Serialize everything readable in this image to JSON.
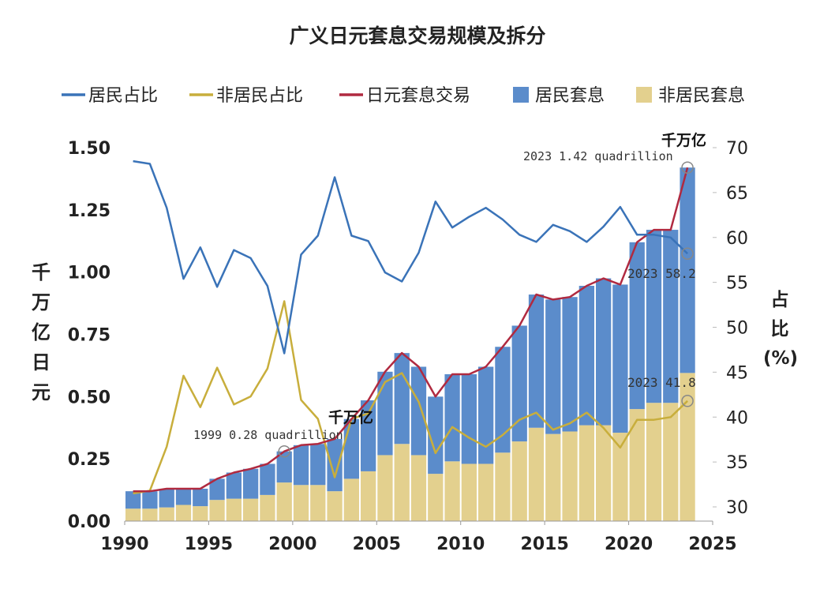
{
  "chart_data": {
    "type": "bar+line",
    "title": "广义日元套息交易规模及拆分",
    "ylabel_left": "千万亿日元",
    "ylabel_right": "占比(%)",
    "ylim_left": [
      0,
      1.5
    ],
    "ylim_right": [
      28.5,
      70
    ],
    "xlim": [
      1990,
      2025
    ],
    "x_ticks": [
      "1990",
      "1995",
      "2000",
      "2005",
      "2010",
      "2015",
      "2020",
      "2025"
    ],
    "y_ticks_left": [
      "0.00",
      "0.25",
      "0.50",
      "0.75",
      "1.00",
      "1.25",
      "1.50"
    ],
    "y_ticks_right": [
      "30",
      "35",
      "40",
      "45",
      "50",
      "55",
      "60",
      "65",
      "70"
    ],
    "legend_position": "top",
    "years": [
      1990,
      1991,
      1992,
      1993,
      1994,
      1995,
      1996,
      1997,
      1998,
      1999,
      2000,
      2001,
      2002,
      2003,
      2004,
      2005,
      2006,
      2007,
      2008,
      2009,
      2010,
      2011,
      2012,
      2013,
      2014,
      2015,
      2016,
      2017,
      2018,
      2019,
      2020,
      2021,
      2022,
      2023
    ],
    "series": [
      {
        "name": "居民占比",
        "type": "line",
        "axis": "right",
        "color": "#3a73b8",
        "values": [
          68.5,
          68.2,
          63.3,
          55.4,
          58.9,
          54.5,
          58.6,
          57.7,
          54.6,
          47.1,
          58.1,
          60.2,
          66.7,
          60.2,
          59.6,
          56.1,
          55.1,
          58.3,
          64.0,
          61.1,
          62.3,
          63.3,
          62.0,
          60.3,
          59.5,
          61.4,
          60.7,
          59.5,
          61.2,
          63.4,
          60.3,
          60.3,
          60.0,
          58.2
        ]
      },
      {
        "name": "非居民占比",
        "type": "line",
        "axis": "right",
        "color": "#c8ae3c",
        "values": [
          31.5,
          31.8,
          36.7,
          44.6,
          41.1,
          45.5,
          41.4,
          42.3,
          45.4,
          52.9,
          41.9,
          39.8,
          33.3,
          39.8,
          40.4,
          43.9,
          44.9,
          41.7,
          36.0,
          38.9,
          37.7,
          36.7,
          38.0,
          39.7,
          40.5,
          38.6,
          39.3,
          40.5,
          38.8,
          36.6,
          39.7,
          39.7,
          40.0,
          41.8
        ]
      },
      {
        "name": "日元套息交易",
        "type": "line",
        "axis": "left",
        "color": "#b02a40",
        "values": [
          0.12,
          0.12,
          0.13,
          0.13,
          0.13,
          0.17,
          0.195,
          0.21,
          0.23,
          0.28,
          0.305,
          0.31,
          0.33,
          0.41,
          0.485,
          0.6,
          0.675,
          0.62,
          0.5,
          0.59,
          0.59,
          0.62,
          0.7,
          0.785,
          0.91,
          0.89,
          0.9,
          0.945,
          0.975,
          0.95,
          1.12,
          1.17,
          1.17,
          1.42
        ]
      },
      {
        "name": "居民套息",
        "type": "bar",
        "axis": "left",
        "color": "#5b8ccb",
        "values": [
          0.07,
          0.07,
          0.075,
          0.065,
          0.07,
          0.085,
          0.105,
          0.12,
          0.125,
          0.125,
          0.16,
          0.165,
          0.21,
          0.24,
          0.285,
          0.335,
          0.365,
          0.355,
          0.31,
          0.35,
          0.36,
          0.39,
          0.425,
          0.465,
          0.535,
          0.54,
          0.54,
          0.56,
          0.59,
          0.595,
          0.67,
          0.695,
          0.695,
          0.825
        ]
      },
      {
        "name": "非居民套息",
        "type": "bar",
        "axis": "left",
        "color": "#e3d08e",
        "values": [
          0.05,
          0.05,
          0.055,
          0.065,
          0.06,
          0.085,
          0.09,
          0.09,
          0.105,
          0.155,
          0.145,
          0.145,
          0.12,
          0.17,
          0.2,
          0.265,
          0.31,
          0.265,
          0.19,
          0.24,
          0.23,
          0.23,
          0.275,
          0.32,
          0.375,
          0.35,
          0.36,
          0.385,
          0.385,
          0.355,
          0.45,
          0.475,
          0.475,
          0.595
        ]
      }
    ],
    "annotations": [
      {
        "unit": "千万亿",
        "text": "2023 1.42 quadrillion"
      },
      {
        "unit": "千万亿",
        "text": "1999 0.28 quadrillion"
      },
      {
        "text": "2023 58.2"
      },
      {
        "text": "2023 41.8"
      }
    ]
  }
}
